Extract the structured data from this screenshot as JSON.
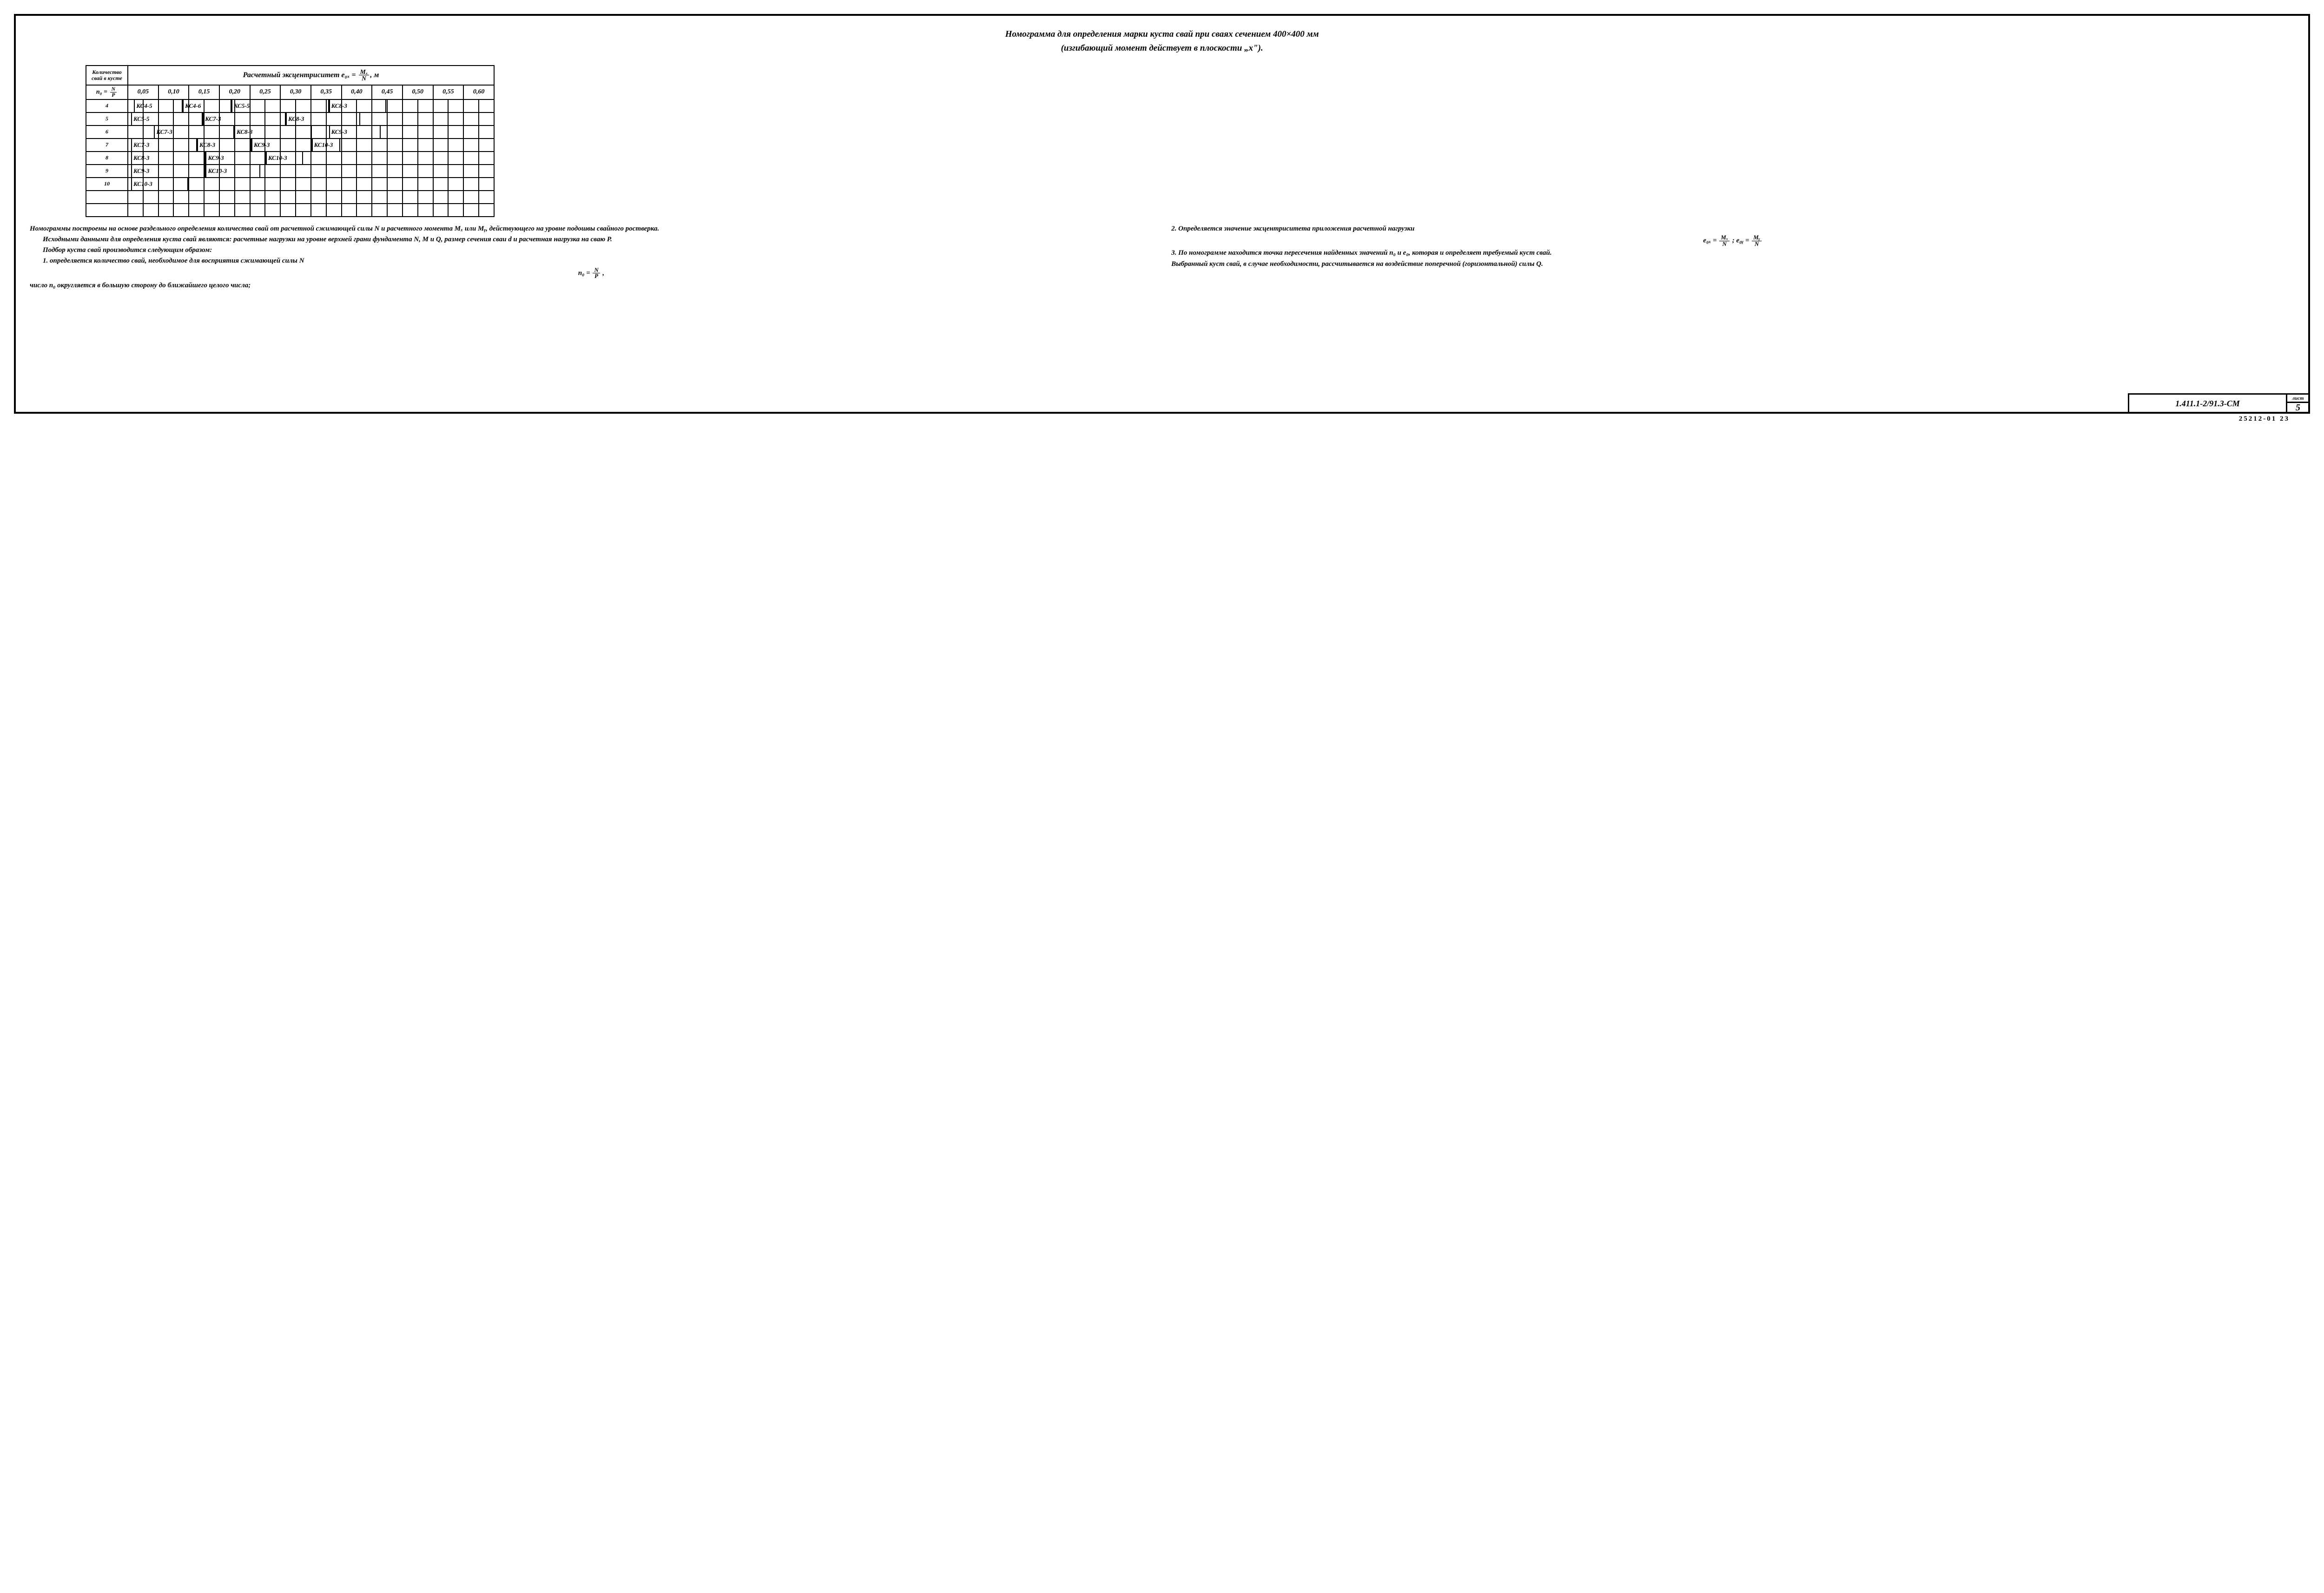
{
  "title": {
    "line1": "Номограмма для определения марки куста свай при сваях сечением 400×400 мм",
    "line2": "(изгибающий момент действует в плоскости „x\")."
  },
  "table": {
    "left_header_top": "Количество свай в кусте",
    "left_header_bottom_prefix": "n₀ = ",
    "left_header_bottom_num": "N",
    "left_header_bottom_den": "P",
    "super_header_prefix": "Расчетный эксцентриситет   e₀ₓ = ",
    "super_header_num": "Mₓ",
    "super_header_den": "N",
    "super_header_suffix": ", м",
    "x_min": 0.025,
    "x_max": 0.625,
    "x_ticks": [
      "0,05",
      "0,10",
      "0,15",
      "0,20",
      "0,25",
      "0,30",
      "0,35",
      "0,40",
      "0,45",
      "0,50",
      "0,55",
      "0,60"
    ],
    "rows": [
      {
        "n": "4",
        "segments": [
          {
            "label": "КС4-5",
            "start": 0.035,
            "end": 0.12
          },
          {
            "label": "КС4-6",
            "start": 0.12,
            "end": 0.205
          },
          {
            "label": "КС5-5",
            "start": 0.205,
            "end": 0.375
          },
          {
            "label": "КС8-3",
            "start": 0.375,
            "end": 0.475
          }
        ]
      },
      {
        "n": "5",
        "segments": [
          {
            "label": "КС5-5",
            "start": 0.03,
            "end": 0.155
          },
          {
            "label": "КС7-3",
            "start": 0.155,
            "end": 0.3
          },
          {
            "label": "КС8-3",
            "start": 0.3,
            "end": 0.43
          }
        ]
      },
      {
        "n": "6",
        "segments": [
          {
            "label": "КС7-3",
            "start": 0.07,
            "end": 0.21
          },
          {
            "label": "КС8-3",
            "start": 0.21,
            "end": 0.345
          },
          {
            "label": "КС9-3",
            "start": 0.375,
            "end": 0.465
          }
        ]
      },
      {
        "n": "7",
        "segments": [
          {
            "label": "КС7-3",
            "start": 0.03,
            "end": 0.145
          },
          {
            "label": "КС8-3",
            "start": 0.145,
            "end": 0.24
          },
          {
            "label": "КС9-3",
            "start": 0.24,
            "end": 0.345
          },
          {
            "label": "КС10-3",
            "start": 0.345,
            "end": 0.395
          }
        ]
      },
      {
        "n": "8",
        "segments": [
          {
            "label": "КС8-3",
            "start": 0.03,
            "end": 0.16
          },
          {
            "label": "КС9-3",
            "start": 0.16,
            "end": 0.265
          },
          {
            "label": "КС10-3",
            "start": 0.265,
            "end": 0.33
          }
        ]
      },
      {
        "n": "9",
        "segments": [
          {
            "label": "КС9-3",
            "start": 0.03,
            "end": 0.16
          },
          {
            "label": "КС10-3",
            "start": 0.16,
            "end": 0.255
          }
        ]
      },
      {
        "n": "10",
        "segments": [
          {
            "label": "КС10-3",
            "start": 0.03,
            "end": 0.13
          }
        ]
      }
    ],
    "blank_rows": 2
  },
  "notes": {
    "left": [
      "Номограммы построены на основе раздельного определения количества свай от расчетной сжимающей силы N и расчетного момента Mₓ или Mᵧ, действующего на уровне подошвы свайного ростверка.",
      "Исходными данными для определения куста свай являются: расчетные нагрузки на уровне верхней грани фундамента N, M и Q, размер сечения сваи d и расчетная нагрузка на сваю P.",
      "Подбор куста свай производится следующим образом:",
      "1. определяется количество свай, необходимое для восприятия сжимающей силы N"
    ],
    "left_formula_prefix": "n₀ = ",
    "left_formula_num": "N",
    "left_formula_den": "P",
    "left_formula_suffix": " ,",
    "left_tail": "число n₀ округляется в большую сторону до ближайшего целого числа;",
    "right_lead": "2. Определяется значение эксцентриситета приложения расчетной нагрузки",
    "right_formula_a_prefix": "e₀ₓ = ",
    "right_formula_a_num": "Mₓ",
    "right_formula_a_den": "N",
    "right_formula_sep": "   ;   ",
    "right_formula_b_prefix": "e₀ᵧ = ",
    "right_formula_b_num": "Mᵧ",
    "right_formula_b_den": "N",
    "right_rest": [
      "3. По номограмме находится точка пересечения найденных значений n₀ и e₀, которая и определяет требуемый куст свай.",
      "Выбранный куст свай, в случае необходимости, рассчитывается на воздействие поперечной (горизонтальной) силы Q."
    ]
  },
  "stamp": {
    "code": "1.411.1-2/91.3-СМ",
    "sheet_label": "лист",
    "sheet_num": "5"
  },
  "footer_id": "25212-01   23",
  "colors": {
    "ink": "#000000",
    "paper": "#ffffff"
  }
}
